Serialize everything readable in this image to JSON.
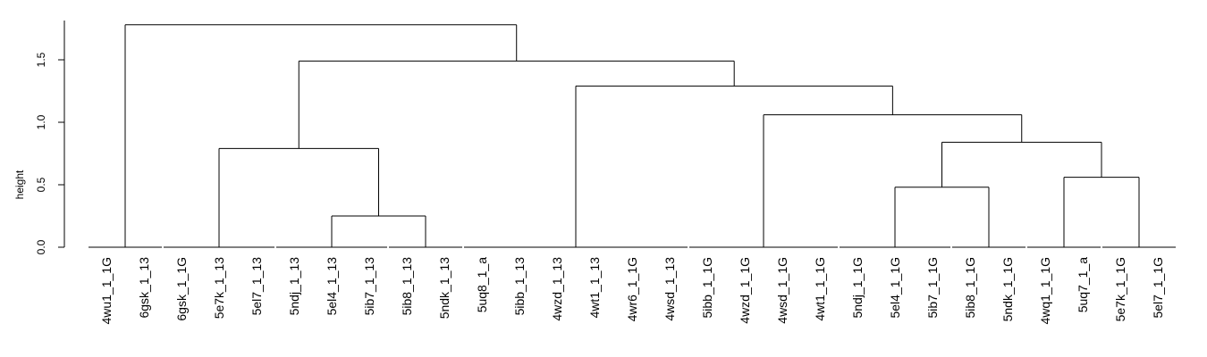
{
  "chart_data": {
    "type": "dendrogram",
    "title": "",
    "xlabel": "",
    "ylabel": "height",
    "ylim": [
      0,
      1.8
    ],
    "yticks": [
      {
        "value": 0.0,
        "label": "0.0"
      },
      {
        "value": 0.5,
        "label": "0.5"
      },
      {
        "value": 1.0,
        "label": "1.0"
      },
      {
        "value": 1.5,
        "label": "1.5"
      }
    ],
    "leaves": [
      "4wu1_1_1G",
      "6gsk_1_13",
      "6gsk_1_1G",
      "5e7k_1_13",
      "5el7_1_13",
      "5ndj_1_13",
      "5el4_1_13",
      "5ib7_1_13",
      "5ib8_1_13",
      "5ndk_1_13",
      "5uq8_1_a",
      "5ibb_1_13",
      "4wzd_1_13",
      "4wt1_1_13",
      "4wr6_1_1G",
      "4wsd_1_13",
      "5ibb_1_1G",
      "4wzd_1_1G",
      "4wsd_1_1G",
      "4wt1_1_1G",
      "5ndj_1_1G",
      "5el4_1_1G",
      "5ib7_1_1G",
      "5ib8_1_1G",
      "5ndk_1_1G",
      "4wq1_1_1G",
      "5uq7_1_a",
      "5e7k_1_1G",
      "5el7_1_1G"
    ],
    "tree": {
      "h": 1.78,
      "c": [
        {
          "h": 0.0,
          "c": [
            0,
            1
          ]
        },
        {
          "h": 1.49,
          "c": [
            {
              "h": 0.79,
              "c": [
                {
                  "h": 0.0,
                  "c": [
                    2,
                    3,
                    4
                  ]
                },
                {
                  "h": 0.25,
                  "c": [
                    {
                      "h": 0.0,
                      "c": [
                        5,
                        6,
                        7
                      ]
                    },
                    {
                      "h": 0.0,
                      "c": [
                        8,
                        9
                      ]
                    }
                  ]
                }
              ]
            },
            {
              "h": 1.29,
              "c": [
                {
                  "h": 0.0,
                  "c": [
                    10,
                    11,
                    12,
                    13,
                    14,
                    15
                  ]
                },
                {
                  "h": 1.06,
                  "c": [
                    {
                      "h": 0.0,
                      "c": [
                        16,
                        17,
                        18,
                        19
                      ]
                    },
                    {
                      "h": 0.84,
                      "c": [
                        {
                          "h": 0.48,
                          "c": [
                            {
                              "h": 0.0,
                              "c": [
                                20,
                                21,
                                22
                              ]
                            },
                            {
                              "h": 0.0,
                              "c": [
                                23,
                                24
                              ]
                            }
                          ]
                        },
                        {
                          "h": 0.56,
                          "c": [
                            {
                              "h": 0.0,
                              "c": [
                                25,
                                26
                              ]
                            },
                            {
                              "h": 0.0,
                              "c": [
                                27,
                                28
                              ]
                            }
                          ]
                        }
                      ]
                    }
                  ]
                }
              ]
            }
          ]
        }
      ]
    }
  }
}
